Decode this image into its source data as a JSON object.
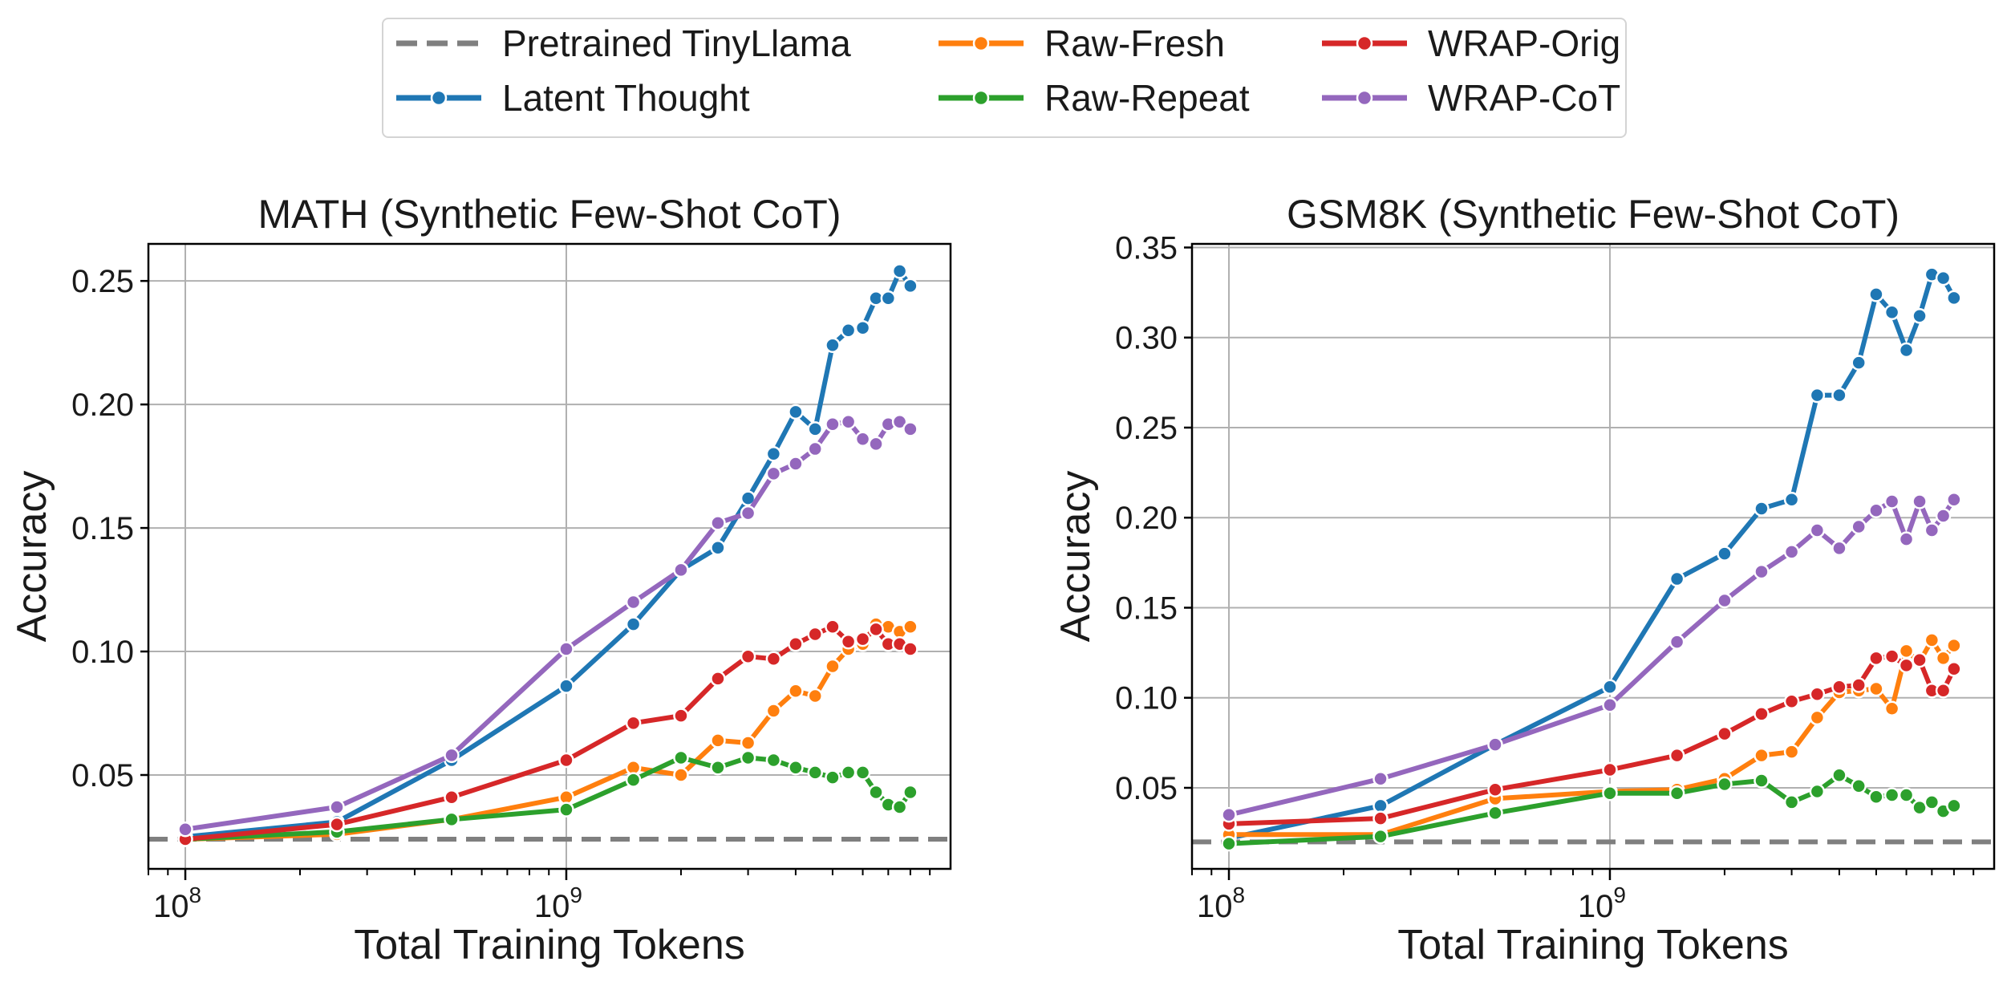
{
  "legend": {
    "entries": [
      {
        "label": "Pretrained TinyLlama",
        "color": "#7f7f7f",
        "style": "dashed"
      },
      {
        "label": "Raw-Fresh",
        "color": "#ff7f0e",
        "style": "line-marker"
      },
      {
        "label": "WRAP-Orig",
        "color": "#d62728",
        "style": "line-marker"
      },
      {
        "label": "Latent Thought",
        "color": "#1f77b4",
        "style": "line-marker"
      },
      {
        "label": "Raw-Repeat",
        "color": "#2ca02c",
        "style": "line-marker"
      },
      {
        "label": "WRAP-CoT",
        "color": "#9467bd",
        "style": "line-marker"
      }
    ]
  },
  "chart_data": [
    {
      "type": "line",
      "title": "MATH (Synthetic Few-Shot CoT)",
      "xlabel": "Total Training Tokens",
      "ylabel": "Accuracy",
      "xscale": "log",
      "xlim": [
        80000000,
        10200000000
      ],
      "ylim": [
        0.012,
        0.265
      ],
      "xticks": [
        {
          "value": 100000000,
          "base": "10",
          "exp": "8"
        },
        {
          "value": 1000000000,
          "base": "10",
          "exp": "9"
        }
      ],
      "yticks": [
        0.05,
        0.1,
        0.15,
        0.2,
        0.25
      ],
      "ytick_labels": [
        "0.05",
        "0.10",
        "0.15",
        "0.20",
        "0.25"
      ],
      "grid": true,
      "baseline": {
        "name": "Pretrained TinyLlama",
        "value": 0.024,
        "color": "#7f7f7f"
      },
      "series": [
        {
          "name": "Latent Thought",
          "color": "#1f77b4",
          "x": [
            100000000,
            250000000,
            500000000,
            1000000000,
            1500000000,
            2000000000,
            2500000000,
            3000000000,
            3500000000,
            4000000000,
            4500000000,
            5000000000,
            5500000000,
            6000000000,
            6500000000,
            7000000000,
            7500000000,
            8000000000
          ],
          "y": [
            0.025,
            0.031,
            0.056,
            0.086,
            0.111,
            0.133,
            0.142,
            0.162,
            0.18,
            0.197,
            0.19,
            0.224,
            0.23,
            0.231,
            0.243,
            0.243,
            0.254,
            0.248
          ]
        },
        {
          "name": "Raw-Fresh",
          "color": "#ff7f0e",
          "x": [
            100000000,
            250000000,
            500000000,
            1000000000,
            1500000000,
            2000000000,
            2500000000,
            3000000000,
            3500000000,
            4000000000,
            4500000000,
            5000000000,
            5500000000,
            6000000000,
            6500000000,
            7000000000,
            7500000000,
            8000000000
          ],
          "y": [
            0.024,
            0.026,
            0.032,
            0.041,
            0.053,
            0.05,
            0.064,
            0.063,
            0.076,
            0.084,
            0.082,
            0.094,
            0.101,
            0.103,
            0.111,
            0.11,
            0.108,
            0.11
          ]
        },
        {
          "name": "Raw-Repeat",
          "color": "#2ca02c",
          "x": [
            100000000,
            250000000,
            500000000,
            1000000000,
            1500000000,
            2000000000,
            2500000000,
            3000000000,
            3500000000,
            4000000000,
            4500000000,
            5000000000,
            5500000000,
            6000000000,
            6500000000,
            7000000000,
            7500000000,
            8000000000
          ],
          "y": [
            0.024,
            0.027,
            0.032,
            0.036,
            0.048,
            0.057,
            0.053,
            0.057,
            0.056,
            0.053,
            0.051,
            0.049,
            0.051,
            0.051,
            0.043,
            0.038,
            0.037,
            0.043
          ]
        },
        {
          "name": "WRAP-Orig",
          "color": "#d62728",
          "x": [
            100000000,
            250000000,
            500000000,
            1000000000,
            1500000000,
            2000000000,
            2500000000,
            3000000000,
            3500000000,
            4000000000,
            4500000000,
            5000000000,
            5500000000,
            6000000000,
            6500000000,
            7000000000,
            7500000000,
            8000000000
          ],
          "y": [
            0.024,
            0.03,
            0.041,
            0.056,
            0.071,
            0.074,
            0.089,
            0.098,
            0.097,
            0.103,
            0.107,
            0.11,
            0.104,
            0.105,
            0.109,
            0.103,
            0.103,
            0.101
          ]
        },
        {
          "name": "WRAP-CoT",
          "color": "#9467bd",
          "x": [
            100000000,
            250000000,
            500000000,
            1000000000,
            1500000000,
            2000000000,
            2500000000,
            3000000000,
            3500000000,
            4000000000,
            4500000000,
            5000000000,
            5500000000,
            6000000000,
            6500000000,
            7000000000,
            7500000000,
            8000000000
          ],
          "y": [
            0.028,
            0.037,
            0.058,
            0.101,
            0.12,
            0.133,
            0.152,
            0.156,
            0.172,
            0.176,
            0.182,
            0.192,
            0.193,
            0.186,
            0.184,
            0.192,
            0.193,
            0.19
          ]
        }
      ]
    },
    {
      "type": "line",
      "title": "GSM8K (Synthetic Few-Shot CoT)",
      "xlabel": "Total Training Tokens",
      "ylabel": "Accuracy",
      "xscale": "log",
      "xlim": [
        80000000,
        10200000000
      ],
      "ylim": [
        0.005,
        0.352
      ],
      "xticks": [
        {
          "value": 100000000,
          "base": "10",
          "exp": "8"
        },
        {
          "value": 1000000000,
          "base": "10",
          "exp": "9"
        }
      ],
      "yticks": [
        0.05,
        0.1,
        0.15,
        0.2,
        0.25,
        0.3,
        0.35
      ],
      "ytick_labels": [
        "0.05",
        "0.10",
        "0.15",
        "0.20",
        "0.25",
        "0.30",
        "0.35"
      ],
      "grid": true,
      "baseline": {
        "name": "Pretrained TinyLlama",
        "value": 0.02,
        "color": "#7f7f7f"
      },
      "series": [
        {
          "name": "Latent Thought",
          "color": "#1f77b4",
          "x": [
            100000000,
            250000000,
            500000000,
            1000000000,
            1500000000,
            2000000000,
            2500000000,
            3000000000,
            3500000000,
            4000000000,
            4500000000,
            5000000000,
            5500000000,
            6000000000,
            6500000000,
            7000000000,
            7500000000,
            8000000000
          ],
          "y": [
            0.022,
            0.04,
            0.074,
            0.106,
            0.166,
            0.18,
            0.205,
            0.21,
            0.268,
            0.268,
            0.286,
            0.324,
            0.314,
            0.293,
            0.312,
            0.335,
            0.333,
            0.322
          ]
        },
        {
          "name": "Raw-Fresh",
          "color": "#ff7f0e",
          "x": [
            100000000,
            250000000,
            500000000,
            1000000000,
            1500000000,
            2000000000,
            2500000000,
            3000000000,
            3500000000,
            4000000000,
            4500000000,
            5000000000,
            5500000000,
            6000000000,
            6500000000,
            7000000000,
            7500000000,
            8000000000
          ],
          "y": [
            0.024,
            0.024,
            0.044,
            0.048,
            0.049,
            0.055,
            0.068,
            0.07,
            0.089,
            0.103,
            0.104,
            0.105,
            0.094,
            0.126,
            0.12,
            0.132,
            0.122,
            0.129
          ]
        },
        {
          "name": "Raw-Repeat",
          "color": "#2ca02c",
          "x": [
            100000000,
            250000000,
            500000000,
            1000000000,
            1500000000,
            2000000000,
            2500000000,
            3000000000,
            3500000000,
            4000000000,
            4500000000,
            5000000000,
            5500000000,
            6000000000,
            6500000000,
            7000000000,
            7500000000,
            8000000000
          ],
          "y": [
            0.019,
            0.023,
            0.036,
            0.047,
            0.047,
            0.052,
            0.054,
            0.042,
            0.048,
            0.057,
            0.051,
            0.045,
            0.046,
            0.046,
            0.039,
            0.042,
            0.037,
            0.04
          ]
        },
        {
          "name": "WRAP-Orig",
          "color": "#d62728",
          "x": [
            100000000,
            250000000,
            500000000,
            1000000000,
            1500000000,
            2000000000,
            2500000000,
            3000000000,
            3500000000,
            4000000000,
            4500000000,
            5000000000,
            5500000000,
            6000000000,
            6500000000,
            7000000000,
            7500000000,
            8000000000
          ],
          "y": [
            0.03,
            0.033,
            0.049,
            0.06,
            0.068,
            0.08,
            0.091,
            0.098,
            0.102,
            0.106,
            0.107,
            0.122,
            0.123,
            0.118,
            0.121,
            0.104,
            0.104,
            0.116
          ]
        },
        {
          "name": "WRAP-CoT",
          "color": "#9467bd",
          "x": [
            100000000,
            250000000,
            500000000,
            1000000000,
            1500000000,
            2000000000,
            2500000000,
            3000000000,
            3500000000,
            4000000000,
            4500000000,
            5000000000,
            5500000000,
            6000000000,
            6500000000,
            7000000000,
            7500000000,
            8000000000
          ],
          "y": [
            0.035,
            0.055,
            0.074,
            0.096,
            0.131,
            0.154,
            0.17,
            0.181,
            0.193,
            0.183,
            0.195,
            0.204,
            0.209,
            0.188,
            0.209,
            0.193,
            0.201,
            0.21
          ]
        }
      ]
    }
  ]
}
